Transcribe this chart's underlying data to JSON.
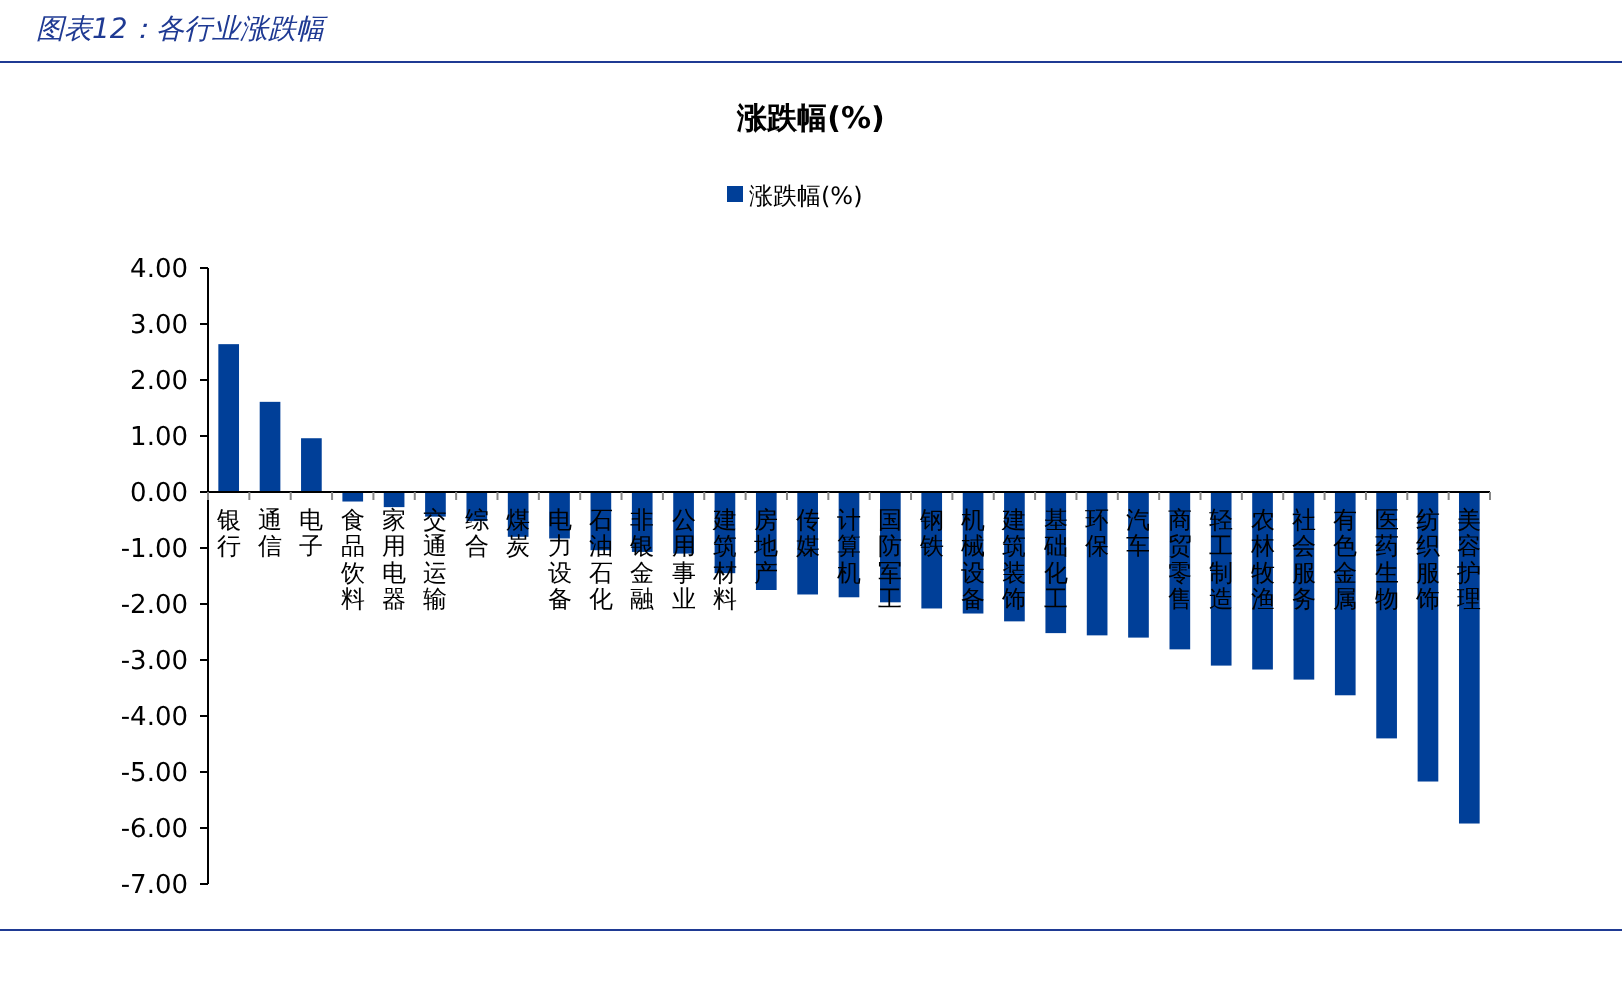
{
  "chart_data": {
    "type": "bar",
    "title": "涨跌幅(%)",
    "subtitle": "图表12：各行业涨跌幅",
    "categories": [
      "银行",
      "通信",
      "电子",
      "食品饮料",
      "家用电器",
      "交通运输",
      "综合",
      "煤炭",
      "电力设备",
      "石油石化",
      "非银金融",
      "公用事业",
      "建筑材料",
      "房地产",
      "传媒",
      "计算机",
      "国防军工",
      "钢铁",
      "机械设备",
      "建筑装饰",
      "基础化工",
      "环保",
      "汽车",
      "商贸零售",
      "轻工制造",
      "农林牧渔",
      "社会服务",
      "有色金属",
      "医药生物",
      "纺织服饰",
      "美容护理"
    ],
    "series": [
      {
        "name": "涨跌幅(%)",
        "color": "#003f98",
        "values": [
          2.64,
          1.61,
          0.96,
          -0.17,
          -0.27,
          -0.44,
          -0.52,
          -0.8,
          -0.83,
          -1.04,
          -1.07,
          -1.1,
          -1.45,
          -1.75,
          -1.83,
          -1.88,
          -1.97,
          -2.08,
          -2.17,
          -2.31,
          -2.52,
          -2.56,
          -2.6,
          -2.81,
          -3.1,
          -3.17,
          -3.35,
          -3.63,
          -4.4,
          -5.17,
          -5.92
        ]
      }
    ],
    "ylim": [
      -7,
      4
    ],
    "yticks": [
      {
        "value": -7,
        "label": "-7.00"
      },
      {
        "value": -6,
        "label": "-6.00"
      },
      {
        "value": -5,
        "label": "-5.00"
      },
      {
        "value": -4,
        "label": "-4.00"
      },
      {
        "value": -3,
        "label": "-3.00"
      },
      {
        "value": -2,
        "label": "-2.00"
      },
      {
        "value": -1,
        "label": "-1.00"
      },
      {
        "value": 0,
        "label": "0.00"
      },
      {
        "value": 1,
        "label": "1.00"
      },
      {
        "value": 2,
        "label": "2.00"
      },
      {
        "value": 3,
        "label": "3.00"
      },
      {
        "value": 4,
        "label": "4.00"
      }
    ],
    "legend": "top",
    "grid": false
  }
}
